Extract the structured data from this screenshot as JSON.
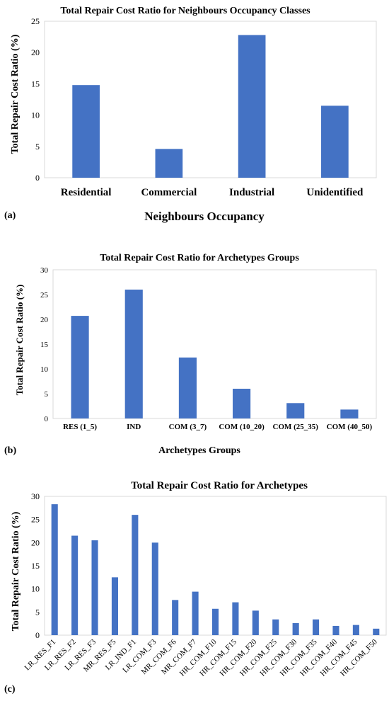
{
  "charts": [
    {
      "letter": "(a)",
      "chart_data": {
        "type": "bar",
        "title": "Total Repair Cost Ratio for Neighbours Occupancy Classes",
        "xlabel": "Neighbours Occupancy",
        "ylabel": "Total Repair Cost Ratio  (%)",
        "categories": [
          "Residential",
          "Commercial",
          "Industrial",
          "Unidentified"
        ],
        "values": [
          14.8,
          4.6,
          22.8,
          11.5
        ],
        "ylim": [
          0,
          25
        ],
        "yticks": [
          0,
          5,
          10,
          15,
          20,
          25
        ],
        "color": "#4472C4",
        "grid": false,
        "legend": "none"
      }
    },
    {
      "letter": "(b)",
      "chart_data": {
        "type": "bar",
        "title": "Total Repair Cost Ratio for Archetypes  Groups",
        "xlabel": "Archetypes  Groups",
        "ylabel": "Total Repair Cost Ratio  (%)",
        "categories": [
          "RES (1_5)",
          "IND",
          "COM (3_7)",
          "COM (10_20)",
          "COM (25_35)",
          "COM (40_50)"
        ],
        "values": [
          20.7,
          26.0,
          12.3,
          6.0,
          3.1,
          1.8
        ],
        "ylim": [
          0,
          30
        ],
        "yticks": [
          0,
          5,
          10,
          15,
          20,
          25,
          30
        ],
        "color": "#4472C4",
        "grid": false,
        "legend": "none"
      }
    },
    {
      "letter": "(c)",
      "chart_data": {
        "type": "bar",
        "title": "Total Repair Cost Ratio for Archetypes",
        "xlabel": "",
        "ylabel": "Total Repair Cost Ratio (%)",
        "categories": [
          "LR_RES_F1",
          "LR_RES_F2",
          "LR_RES_F3",
          "MR_RES_F5",
          "LR_IND_F1",
          "LR_COM_F3",
          "MR_COM_F6",
          "MR_COM_F7",
          "HR_COM_F10",
          "HR_COM_F15",
          "HR_COM_F20",
          "HR_COM_F25",
          "HR_COM_F30",
          "HR_COM_F35",
          "HR_COM_F40",
          "HR_COM_F45",
          "HR_COM_F50"
        ],
        "values": [
          28.3,
          21.5,
          20.5,
          12.5,
          26.0,
          20.0,
          7.6,
          9.4,
          5.7,
          7.1,
          5.3,
          3.4,
          2.6,
          3.4,
          2.0,
          2.2,
          1.4
        ],
        "ylim": [
          0,
          30
        ],
        "yticks": [
          0,
          5,
          10,
          15,
          20,
          25,
          30
        ],
        "color": "#4472C4",
        "grid": false,
        "legend": "none"
      }
    }
  ]
}
